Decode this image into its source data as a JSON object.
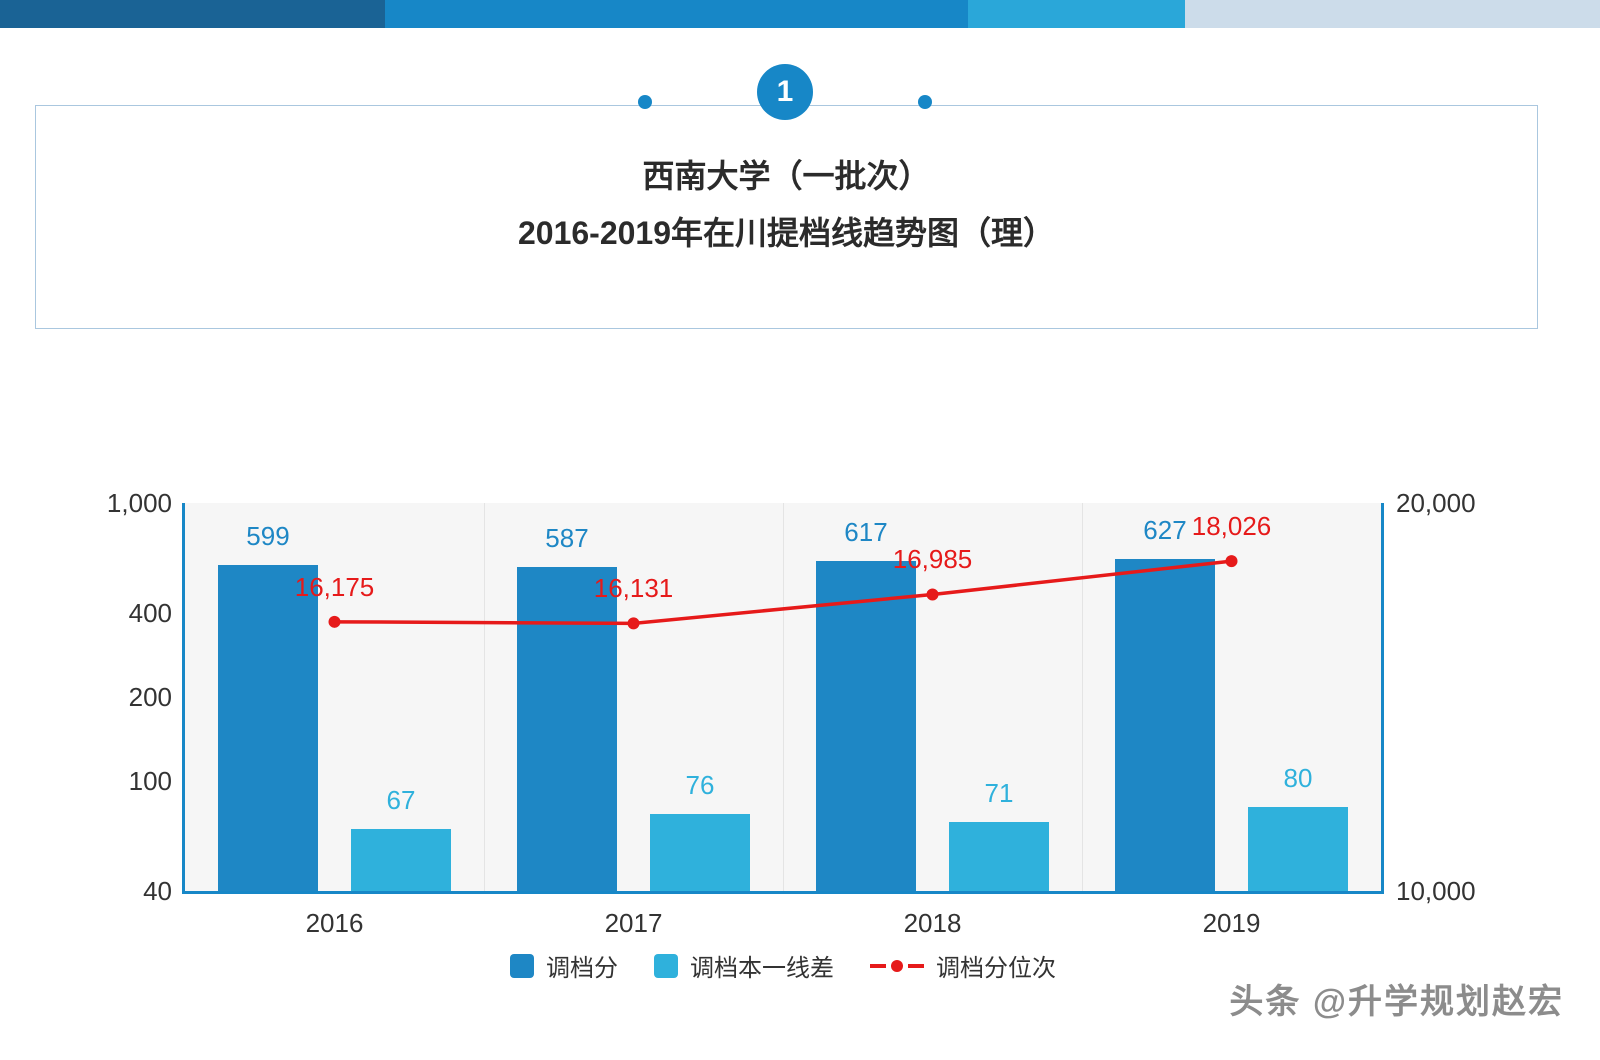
{
  "colors": {
    "accent_blue": "#1787c7",
    "bar_dark_blue": "#1e87c5",
    "bar_light_blue": "#2fb1dc",
    "line_red": "#e61a1a",
    "topbar_segments": [
      "#1a6395",
      "#1787c7",
      "#2aa7d9",
      "#ccdcea"
    ]
  },
  "badge": {
    "number": "1"
  },
  "title": {
    "line1": "西南大学（一批次）",
    "line2": "2016-2019年在川提档线趋势图（理）"
  },
  "watermark": "头条 @升学规划赵宏",
  "chart_data": {
    "type": "bar+line",
    "categories": [
      "2016",
      "2017",
      "2018",
      "2019"
    ],
    "series": [
      {
        "name": "调档分",
        "type": "bar",
        "axis": "left",
        "color": "#1e87c5",
        "values": [
          599,
          587,
          617,
          627
        ],
        "labels": [
          "599",
          "587",
          "617",
          "627"
        ]
      },
      {
        "name": "调档本一线差",
        "type": "bar",
        "axis": "left",
        "color": "#2fb1dc",
        "values": [
          67,
          76,
          71,
          80
        ],
        "labels": [
          "67",
          "76",
          "71",
          "80"
        ]
      },
      {
        "name": "调档分位次",
        "type": "line",
        "axis": "right",
        "color": "#e61a1a",
        "values": [
          16175,
          16131,
          16985,
          18026
        ],
        "labels": [
          "16,175",
          "16,131",
          "16,985",
          "18,026"
        ]
      }
    ],
    "left_axis": {
      "scale": "log",
      "min": 40,
      "max": 1000,
      "ticks": [
        1000,
        400,
        200,
        100,
        40
      ],
      "tick_labels": [
        "1,000",
        "400",
        "200",
        "100",
        "40"
      ]
    },
    "right_axis": {
      "scale": "log",
      "min": 10000,
      "max": 20000,
      "ticks": [
        20000,
        10000
      ],
      "tick_labels": [
        "20,000",
        "10,000"
      ]
    },
    "legend_position": "bottom",
    "grid": "vertical-only"
  }
}
